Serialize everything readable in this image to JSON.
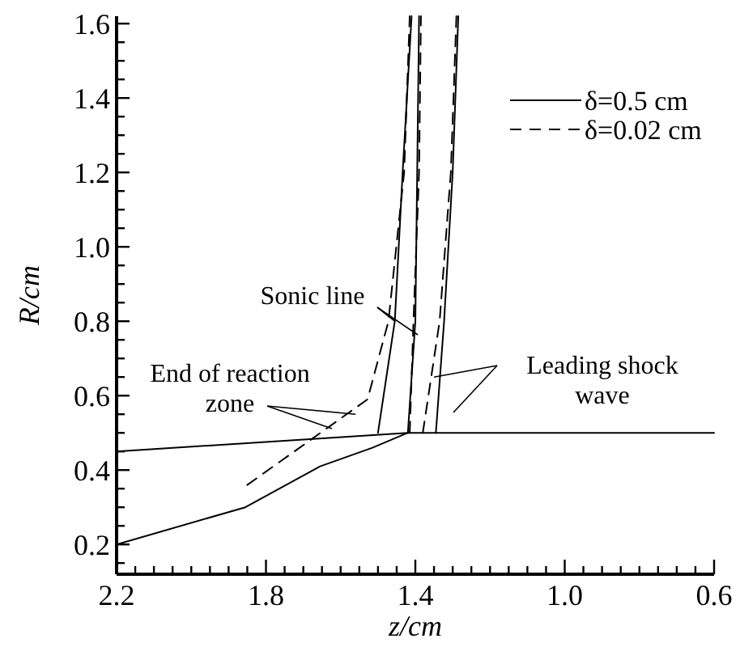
{
  "chart_data": {
    "type": "line",
    "xlabel": "z/cm",
    "ylabel": "R/cm",
    "xlim": [
      2.2,
      0.6
    ],
    "ylim": [
      0.12,
      1.62
    ],
    "xticks": [
      2.2,
      {
        "value": 2.15,
        "label": null
      },
      {
        "value": 2.1,
        "label": null
      },
      {
        "value": 2.05,
        "label": null
      },
      {
        "value": 2.0,
        "label": null
      },
      {
        "value": 1.95,
        "label": null
      },
      {
        "value": 1.9,
        "label": null
      },
      {
        "value": 1.85,
        "label": null
      },
      1.8,
      {
        "value": 1.75,
        "label": null
      },
      {
        "value": 1.7,
        "label": null
      },
      {
        "value": 1.65,
        "label": null
      },
      {
        "value": 1.6,
        "label": null
      },
      {
        "value": 1.55,
        "label": null
      },
      {
        "value": 1.5,
        "label": null
      },
      {
        "value": 1.45,
        "label": null
      },
      1.4,
      {
        "value": 1.35,
        "label": null
      },
      {
        "value": 1.3,
        "label": null
      },
      {
        "value": 1.25,
        "label": null
      },
      {
        "value": 1.2,
        "label": null
      },
      {
        "value": 1.15,
        "label": null
      },
      {
        "value": 1.1,
        "label": null
      },
      {
        "value": 1.05,
        "label": null
      },
      {
        "value": 1.0,
        "label": "1.0"
      },
      {
        "value": 0.95,
        "label": null
      },
      {
        "value": 0.9,
        "label": null
      },
      {
        "value": 0.85,
        "label": null
      },
      {
        "value": 0.8,
        "label": null
      },
      {
        "value": 0.75,
        "label": null
      },
      {
        "value": 0.7,
        "label": null
      },
      {
        "value": 0.65,
        "label": null
      },
      0.6
    ],
    "yticks": [
      {
        "value": 0.15,
        "label": null
      },
      0.2,
      {
        "value": 0.25,
        "label": null
      },
      {
        "value": 0.3,
        "label": null
      },
      {
        "value": 0.35,
        "label": null
      },
      0.4,
      {
        "value": 0.45,
        "label": null
      },
      {
        "value": 0.5,
        "label": null
      },
      {
        "value": 0.55,
        "label": null
      },
      0.6,
      {
        "value": 0.65,
        "label": null
      },
      {
        "value": 0.7,
        "label": null
      },
      {
        "value": 0.75,
        "label": null
      },
      0.8,
      {
        "value": 0.85,
        "label": null
      },
      {
        "value": 0.9,
        "label": null
      },
      {
        "value": 0.95,
        "label": null
      },
      {
        "value": 1.0,
        "label": "1.0"
      },
      {
        "value": 1.05,
        "label": null
      },
      {
        "value": 1.1,
        "label": null
      },
      {
        "value": 1.15,
        "label": null
      },
      1.2,
      {
        "value": 1.25,
        "label": null
      },
      {
        "value": 1.3,
        "label": null
      },
      {
        "value": 1.35,
        "label": null
      },
      1.4,
      {
        "value": 1.45,
        "label": null
      },
      {
        "value": 1.5,
        "label": null
      },
      {
        "value": 1.55,
        "label": null
      },
      1.6
    ],
    "grid": false,
    "legend": "top right",
    "marker": "none",
    "series": [
      {
        "name": "δ=0.5 cm",
        "color": "#000000",
        "line_style": "solid",
        "x": [
          1.5,
          1.455,
          1.434,
          1.41
        ],
        "values": [
          0.5,
          0.8,
          1.2,
          1.62
        ]
      },
      {
        "color": "#000000",
        "line_style": "solid",
        "x": [
          1.42,
          1.4,
          1.395,
          1.39
        ],
        "values": [
          0.5,
          0.8,
          1.2,
          1.62
        ]
      },
      {
        "color": "#000000",
        "line_style": "solid",
        "x": [
          1.345,
          1.323,
          1.3,
          1.285
        ],
        "values": [
          0.5,
          0.8,
          1.2,
          1.62
        ]
      },
      {
        "color": "#000000",
        "line_style": "solid",
        "x": [
          2.2,
          1.42,
          0.6
        ],
        "values": [
          0.45,
          0.5,
          0.5
        ]
      },
      {
        "color": "#000000",
        "line_style": "solid",
        "x": [
          2.2,
          1.855,
          1.655,
          1.515,
          1.42
        ],
        "values": [
          0.2,
          0.3,
          0.41,
          0.46,
          0.5
        ]
      },
      {
        "name": "δ=0.02 cm",
        "color": "#000000",
        "line_style": "dashed",
        "x": [
          1.85,
          1.71,
          1.528,
          1.472,
          1.43,
          1.415
        ],
        "values": [
          0.36,
          0.46,
          0.59,
          0.8,
          1.2,
          1.62
        ]
      },
      {
        "color": "#000000",
        "line_style": "dashed",
        "x": [
          1.415,
          1.405,
          1.39,
          1.385
        ],
        "values": [
          0.5,
          0.8,
          1.2,
          1.62
        ]
      },
      {
        "color": "#000000",
        "line_style": "dashed",
        "x": [
          1.38,
          1.335,
          1.305,
          1.29
        ],
        "values": [
          0.5,
          0.8,
          1.2,
          1.62
        ]
      }
    ],
    "annotations": [
      {
        "text": "Sonic line",
        "x": 1.455,
        "y": 0.8
      },
      {
        "text": "End of reaction zone",
        "x": 1.56,
        "y": 0.55
      },
      {
        "text": "Leading shock wave",
        "x": 1.35,
        "y": 0.65
      }
    ]
  }
}
